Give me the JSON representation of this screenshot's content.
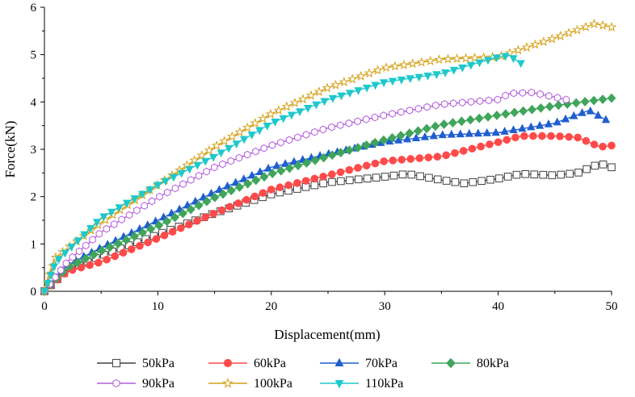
{
  "chart_data": {
    "type": "line",
    "title": "",
    "xlabel": "Displacement(mm)",
    "ylabel": "Force(kN)",
    "xlim": [
      0,
      50
    ],
    "ylim": [
      0,
      6
    ],
    "xticks": [
      0,
      10,
      20,
      30,
      40,
      50
    ],
    "yticks": [
      0,
      1,
      2,
      3,
      4,
      5,
      6
    ],
    "x_tick_labels": [
      "0",
      "10",
      "20",
      "30",
      "40",
      "50"
    ],
    "y_tick_labels": [
      "0",
      "1",
      "2",
      "3",
      "4",
      "5",
      "6"
    ],
    "grid": false,
    "legend_position": "bottom",
    "series": [
      {
        "name": "50kPa",
        "color": "#404040",
        "marker": "square",
        "x": [
          0,
          2,
          5,
          10,
          15,
          20,
          25,
          30,
          32,
          35,
          37,
          40,
          42,
          45,
          47,
          49,
          50
        ],
        "y": [
          0,
          0.45,
          0.75,
          1.2,
          1.65,
          2.05,
          2.3,
          2.42,
          2.48,
          2.35,
          2.28,
          2.38,
          2.48,
          2.45,
          2.5,
          2.7,
          2.62
        ]
      },
      {
        "name": "60kPa",
        "color": "#ff4a4a",
        "marker": "circle",
        "x": [
          0,
          2,
          5,
          10,
          15,
          20,
          25,
          30,
          35,
          40,
          42,
          45,
          47,
          49,
          50
        ],
        "y": [
          0,
          0.42,
          0.62,
          1.12,
          1.65,
          2.15,
          2.45,
          2.75,
          2.85,
          3.15,
          3.28,
          3.28,
          3.25,
          3.05,
          3.08
        ]
      },
      {
        "name": "70kPa",
        "color": "#1f5fcf",
        "marker": "triangle-up",
        "x": [
          0,
          2,
          5,
          10,
          15,
          20,
          25,
          30,
          35,
          40,
          45,
          48,
          49.5
        ],
        "y": [
          0,
          0.55,
          0.92,
          1.5,
          2.1,
          2.62,
          2.9,
          3.15,
          3.3,
          3.35,
          3.55,
          3.82,
          3.62
        ]
      },
      {
        "name": "80kPa",
        "color": "#3fa55a",
        "marker": "diamond",
        "x": [
          0,
          2,
          5,
          10,
          15,
          20,
          25,
          30,
          35,
          40,
          45,
          50
        ],
        "y": [
          0,
          0.5,
          0.85,
          1.38,
          1.98,
          2.48,
          2.85,
          3.2,
          3.52,
          3.72,
          3.92,
          4.08
        ]
      },
      {
        "name": "90kPa",
        "color": "#b45ddb",
        "marker": "hexagon",
        "x": [
          0,
          2,
          5,
          10,
          15,
          20,
          25,
          30,
          35,
          40,
          41,
          43,
          44,
          46
        ],
        "y": [
          0,
          0.62,
          1.25,
          1.98,
          2.62,
          3.08,
          3.45,
          3.72,
          3.95,
          4.05,
          4.18,
          4.2,
          4.15,
          4.05
        ]
      },
      {
        "name": "100kPa",
        "color": "#d4a017",
        "marker": "star",
        "x": [
          0,
          1,
          5,
          10,
          15,
          20,
          25,
          30,
          35,
          40,
          45,
          48.5,
          50
        ],
        "y": [
          0,
          0.72,
          1.45,
          2.25,
          3.05,
          3.75,
          4.3,
          4.72,
          4.9,
          4.95,
          5.35,
          5.65,
          5.58
        ]
      },
      {
        "name": "110kPa",
        "color": "#1fc8cc",
        "marker": "triangle-down",
        "x": [
          0,
          1,
          5,
          10,
          15,
          20,
          25,
          30,
          35,
          40,
          41,
          42
        ],
        "y": [
          0,
          0.62,
          1.55,
          2.25,
          2.85,
          3.55,
          4.05,
          4.42,
          4.6,
          4.95,
          4.98,
          4.82
        ]
      }
    ]
  }
}
